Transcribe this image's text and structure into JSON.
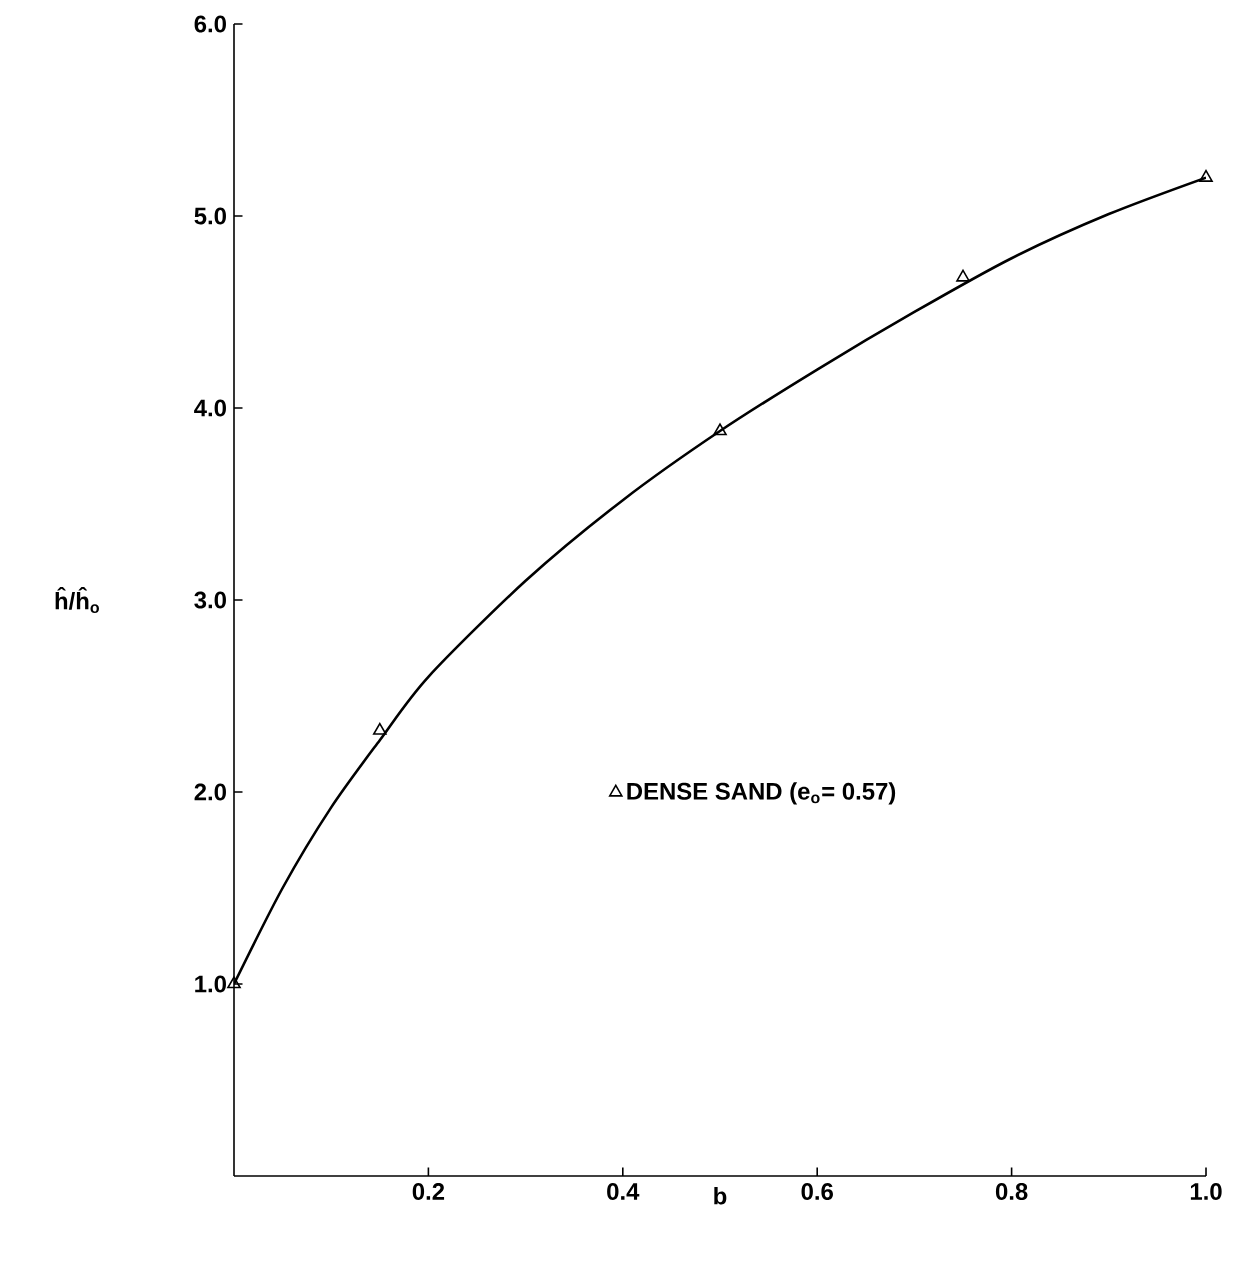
{
  "chart_data": {
    "type": "scatter",
    "xlabel": "b",
    "ylabel": "ĥ/ĥ$_{o}$",
    "xlim": [
      0,
      1.0
    ],
    "ylim": [
      0,
      6.0
    ],
    "xticks": [
      {
        "value": 0.2,
        "label": "0.2"
      },
      {
        "value": 0.4,
        "label": "0.4"
      },
      {
        "value": 0.6,
        "label": "0.6"
      },
      {
        "value": 0.8,
        "label": "0.8"
      },
      {
        "value": 1.0,
        "label": "1.0"
      }
    ],
    "yticks": [
      {
        "value": 1,
        "label": "1.0"
      },
      {
        "value": 2,
        "label": "2.0"
      },
      {
        "value": 3,
        "label": "3.0"
      },
      {
        "value": 4,
        "label": "4.0"
      },
      {
        "value": 5,
        "label": "5.0"
      },
      {
        "value": 6,
        "label": "6.0"
      }
    ],
    "legend": "center",
    "series": [
      {
        "name": "DENSE SAND (e$_{o}$= 0.57)",
        "color": "#000000",
        "marker": "triangle",
        "x": [
          0,
          0.15,
          0.5,
          0.75,
          1.0
        ],
        "values": [
          1.0,
          2.32,
          3.88,
          4.68,
          5.2
        ]
      },
      {
        "type": "line",
        "color": "#000000",
        "line_style": "solid",
        "x": [
          0,
          0.05,
          0.1,
          0.15,
          0.2,
          0.3,
          0.4,
          0.5,
          0.6,
          0.7,
          0.8,
          0.9,
          1.0
        ],
        "values": [
          1.0,
          1.5,
          1.92,
          2.27,
          2.6,
          3.1,
          3.52,
          3.88,
          4.2,
          4.5,
          4.78,
          5.01,
          5.2
        ]
      }
    ]
  }
}
